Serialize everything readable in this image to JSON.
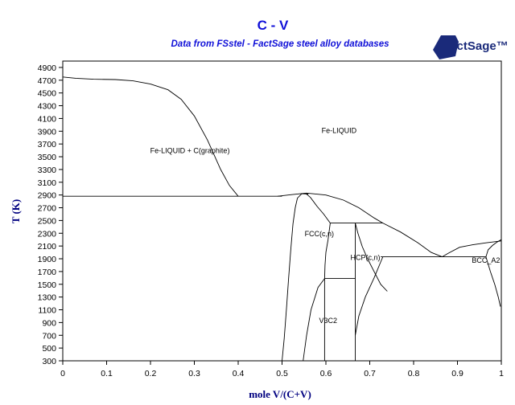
{
  "chart_data": {
    "type": "line",
    "title": "C - V",
    "subtitle": "Data from FSstel - FactSage steel alloy databases",
    "logo_text": "FactSage™",
    "xlabel": "mole V/(C+V)",
    "ylabel": "T (K)",
    "xlim": [
      0,
      1
    ],
    "ylim": [
      300,
      5000
    ],
    "x_ticks": [
      "0",
      "0.1",
      "0.2",
      "0.3",
      "0.4",
      "0.5",
      "0.6",
      "0.7",
      "0.8",
      "0.9",
      "1"
    ],
    "y_ticks": [
      "300",
      "500",
      "700",
      "900",
      "1100",
      "1300",
      "1500",
      "1700",
      "1900",
      "2100",
      "2300",
      "2500",
      "2700",
      "2900",
      "3100",
      "3300",
      "3500",
      "3700",
      "3900",
      "4100",
      "4300",
      "4500",
      "4700",
      "4900"
    ],
    "grid": false,
    "regions": [
      {
        "label": "Fe-LIQUID + C(graphite)",
        "x": 0.29,
        "y": 3560
      },
      {
        "label": "Fe-LIQUID",
        "x": 0.63,
        "y": 3870
      },
      {
        "label": "FCC(c,n)",
        "x": 0.585,
        "y": 2250
      },
      {
        "label": "HCP(c,n)",
        "x": 0.69,
        "y": 1880
      },
      {
        "label": "V3C2",
        "x": 0.605,
        "y": 890
      },
      {
        "label": "BCC_A2",
        "x": 0.965,
        "y": 1840
      }
    ],
    "series": [
      {
        "values": [
          [
            0,
            4750
          ],
          [
            0.03,
            4730
          ],
          [
            0.07,
            4715
          ],
          [
            0.12,
            4710
          ],
          [
            0.16,
            4690
          ],
          [
            0.2,
            4640
          ],
          [
            0.24,
            4550
          ],
          [
            0.27,
            4400
          ],
          [
            0.3,
            4140
          ],
          [
            0.33,
            3760
          ],
          [
            0.36,
            3300
          ],
          [
            0.38,
            3050
          ],
          [
            0.4,
            2880
          ]
        ]
      },
      {
        "values": [
          [
            0,
            2880
          ],
          [
            0.5,
            2880
          ]
        ]
      },
      {
        "values": [
          [
            0.49,
            2880
          ],
          [
            0.52,
            2905
          ],
          [
            0.555,
            2930
          ],
          [
            0.6,
            2900
          ],
          [
            0.64,
            2820
          ],
          [
            0.675,
            2700
          ],
          [
            0.71,
            2540
          ],
          [
            0.73,
            2460
          ]
        ]
      },
      {
        "values": [
          [
            0.73,
            2460
          ],
          [
            0.77,
            2320
          ],
          [
            0.81,
            2150
          ],
          [
            0.84,
            2000
          ],
          [
            0.865,
            1930
          ]
        ]
      },
      {
        "values": [
          [
            0.865,
            1930
          ],
          [
            0.88,
            1990
          ],
          [
            0.905,
            2080
          ],
          [
            0.935,
            2120
          ],
          [
            0.965,
            2150
          ],
          [
            1,
            2180
          ]
        ]
      },
      {
        "values": [
          [
            0.5,
            300
          ],
          [
            0.505,
            650
          ],
          [
            0.51,
            1100
          ],
          [
            0.515,
            1600
          ],
          [
            0.52,
            2050
          ],
          [
            0.525,
            2450
          ],
          [
            0.53,
            2700
          ],
          [
            0.535,
            2850
          ],
          [
            0.545,
            2920
          ],
          [
            0.56,
            2915
          ]
        ]
      },
      {
        "values": [
          [
            0.555,
            2920
          ],
          [
            0.565,
            2860
          ],
          [
            0.58,
            2720
          ],
          [
            0.595,
            2600
          ],
          [
            0.61,
            2460
          ]
        ]
      },
      {
        "values": [
          [
            0.61,
            2460
          ],
          [
            0.605,
            2200
          ],
          [
            0.6,
            2000
          ],
          [
            0.598,
            1800
          ],
          [
            0.597,
            1590
          ]
        ]
      },
      {
        "values": [
          [
            0.548,
            300
          ],
          [
            0.556,
            700
          ],
          [
            0.566,
            1100
          ],
          [
            0.582,
            1450
          ],
          [
            0.597,
            1590
          ]
        ]
      },
      {
        "values": [
          [
            0.61,
            2460
          ],
          [
            0.73,
            2460
          ]
        ]
      },
      {
        "values": [
          [
            0.597,
            1590
          ],
          [
            0.667,
            1590
          ]
        ]
      },
      {
        "values": [
          [
            0.597,
            300
          ],
          [
            0.597,
            1590
          ]
        ]
      },
      {
        "values": [
          [
            0.667,
            300
          ],
          [
            0.667,
            2460
          ]
        ]
      },
      {
        "values": [
          [
            0.667,
            2460
          ],
          [
            0.673,
            2300
          ],
          [
            0.683,
            2090
          ],
          [
            0.695,
            1900
          ],
          [
            0.71,
            1700
          ],
          [
            0.725,
            1500
          ],
          [
            0.74,
            1390
          ]
        ]
      },
      {
        "values": [
          [
            0.667,
            700
          ],
          [
            0.675,
            1000
          ],
          [
            0.69,
            1300
          ],
          [
            0.71,
            1600
          ],
          [
            0.725,
            1850
          ],
          [
            0.73,
            1930
          ]
        ]
      },
      {
        "values": [
          [
            0.725,
            1930
          ],
          [
            0.965,
            1930
          ]
        ]
      },
      {
        "values": [
          [
            0.965,
            1930
          ],
          [
            0.97,
            2040
          ],
          [
            0.98,
            2110
          ],
          [
            0.99,
            2160
          ],
          [
            1,
            2200
          ]
        ]
      },
      {
        "values": [
          [
            0.965,
            1930
          ],
          [
            0.975,
            1700
          ],
          [
            0.985,
            1500
          ],
          [
            0.993,
            1300
          ],
          [
            0.998,
            1150
          ]
        ]
      }
    ]
  }
}
